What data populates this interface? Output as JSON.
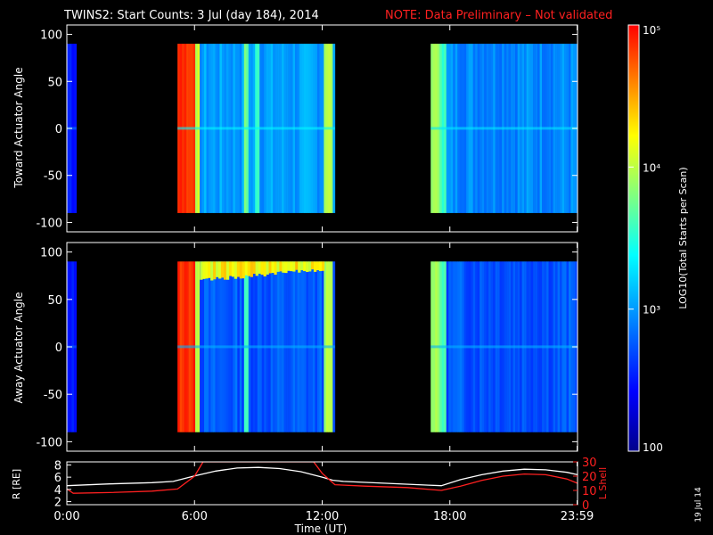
{
  "title": {
    "main": "TWINS2: Start Counts:  3 Jul (day 184), 2014",
    "note": "NOTE: Data Preliminary – Not validated"
  },
  "stamp": "19 Jul 14",
  "colorbar": {
    "label": "LOG10(Total Starts per Scan)",
    "ticks": [
      {
        "value": 100,
        "label": "100"
      },
      {
        "value": 1000,
        "label": "10³"
      },
      {
        "value": 10000,
        "label": "10⁴"
      },
      {
        "value": 100000,
        "label": "10⁵"
      }
    ],
    "range": [
      100,
      100000
    ],
    "scale": "log",
    "colors": [
      "#00008b",
      "#0000ff",
      "#0080ff",
      "#00ffff",
      "#80ff80",
      "#ffff00",
      "#ff8000",
      "#ff0000"
    ]
  },
  "chart_data": [
    {
      "type": "heatmap",
      "panel": "toward",
      "ylabel": "Toward Actuator Angle",
      "ylim": [
        -110,
        110
      ],
      "yticks": [
        100,
        50,
        0,
        -50,
        -100
      ],
      "xlim": [
        0,
        24
      ],
      "data_segments": [
        {
          "start": 0.0,
          "end": 0.45,
          "level": 0.18
        },
        {
          "start": 5.2,
          "end": 12.6,
          "level": 0.32
        },
        {
          "start": 17.1,
          "end": 24.0,
          "level": 0.3
        }
      ],
      "hot_bands": [
        {
          "start": 5.2,
          "end": 6.0,
          "level": 0.95
        },
        {
          "start": 6.0,
          "end": 6.25,
          "level": 0.65
        },
        {
          "start": 8.3,
          "end": 8.55,
          "level": 0.55
        },
        {
          "start": 8.9,
          "end": 9.05,
          "level": 0.5
        },
        {
          "start": 12.1,
          "end": 12.45,
          "level": 0.62
        },
        {
          "start": 17.1,
          "end": 17.55,
          "level": 0.62
        },
        {
          "start": 17.55,
          "end": 17.85,
          "level": 0.5
        }
      ]
    },
    {
      "type": "heatmap",
      "panel": "away",
      "ylabel": "Away Actuator Angle",
      "ylim": [
        -110,
        110
      ],
      "yticks": [
        100,
        50,
        0,
        -50,
        -100
      ],
      "xlim": [
        0,
        24
      ],
      "data_segments": [
        {
          "start": 0.0,
          "end": 0.45,
          "level": 0.15
        },
        {
          "start": 5.2,
          "end": 12.6,
          "level": 0.24
        },
        {
          "start": 17.1,
          "end": 24.0,
          "level": 0.24
        }
      ],
      "hot_bands": [
        {
          "start": 5.2,
          "end": 6.0,
          "level": 0.95
        },
        {
          "start": 6.0,
          "end": 6.25,
          "level": 0.65
        },
        {
          "start": 8.3,
          "end": 8.55,
          "level": 0.5
        },
        {
          "start": 12.1,
          "end": 12.45,
          "level": 0.62
        },
        {
          "start": 17.1,
          "end": 17.55,
          "level": 0.62
        },
        {
          "start": 17.55,
          "end": 17.85,
          "level": 0.5
        }
      ],
      "top_band": {
        "start": 6.25,
        "end": 12.1,
        "level": 0.72,
        "angle_min": 70,
        "angle_max": 90
      }
    },
    {
      "type": "line",
      "panel": "orbit",
      "ylabel_left": "R [RE]",
      "ylabel_right": "L Shell",
      "ylim_left": [
        1.5,
        8.5
      ],
      "yticks_left": [
        2,
        4,
        6,
        8
      ],
      "ylim_right": [
        0,
        30
      ],
      "yticks_right": [
        0,
        10,
        20,
        30
      ],
      "xlim": [
        0,
        24
      ],
      "xticks": [
        {
          "value": 0,
          "label": "0:00"
        },
        {
          "value": 6,
          "label": "6:00"
        },
        {
          "value": 12,
          "label": "12:00"
        },
        {
          "value": 18,
          "label": "18:00"
        },
        {
          "value": 23.98,
          "label": "23:59"
        }
      ],
      "xlabel": "Time (UT)",
      "series": [
        {
          "axis": "left",
          "color": "#ffffff",
          "x": [
            0,
            2,
            4,
            5,
            6,
            7,
            8,
            9,
            10,
            11,
            12,
            12.5,
            13,
            15,
            17,
            17.6,
            18.5,
            19.5,
            20.5,
            21.5,
            22.5,
            23.5,
            24
          ],
          "y": [
            4.6,
            4.9,
            5.1,
            5.3,
            6.2,
            7.0,
            7.5,
            7.6,
            7.4,
            6.9,
            6.0,
            5.5,
            5.3,
            5.0,
            4.7,
            4.6,
            5.6,
            6.4,
            7.0,
            7.3,
            7.2,
            6.8,
            6.4
          ]
        },
        {
          "axis": "right",
          "color": "#ff2020",
          "x": [
            0,
            0.3,
            2,
            4,
            5.2,
            6,
            6.4,
            11.6,
            12.0,
            12.6,
            14,
            16,
            17.6,
            18.5,
            19.5,
            20.5,
            21.5,
            22.5,
            23.5,
            24
          ],
          "y": [
            11,
            8,
            8.5,
            9.5,
            11,
            20,
            30,
            30,
            22,
            14,
            13,
            12,
            10,
            13,
            17,
            20,
            21.5,
            21,
            18,
            15
          ]
        }
      ]
    }
  ]
}
